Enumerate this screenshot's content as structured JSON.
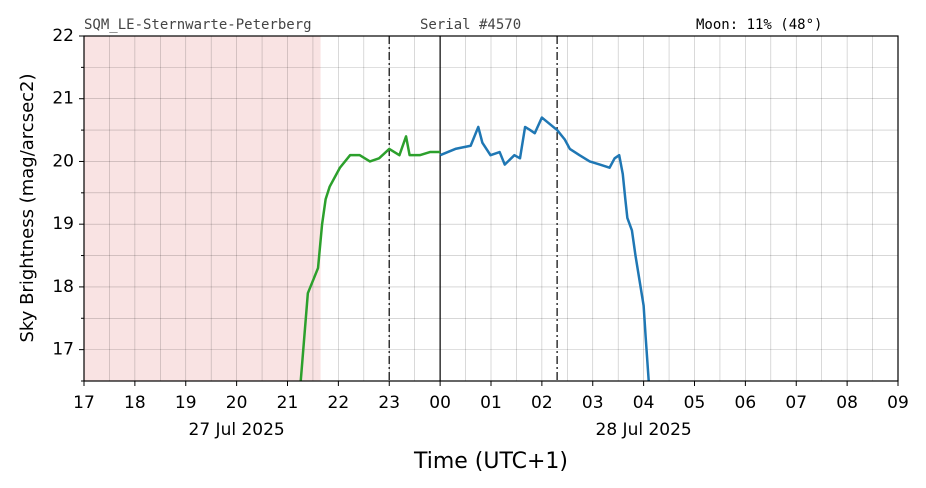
{
  "chart_data": {
    "type": "line",
    "header": {
      "station": "SQM_LE-Sternwarte-Peterberg",
      "serial": "Serial #4570",
      "moon": "Moon: 11% (48°)"
    },
    "y_label": "Sky Brightness (mag/arcsec2)",
    "x_label": "Time (UTC+1)",
    "date_labels": [
      {
        "text": "27 Jul 2025",
        "x": 20
      },
      {
        "text": "28 Jul 2025",
        "x": 28
      }
    ],
    "xlim": [
      17,
      33
    ],
    "ylim": [
      16.5,
      22
    ],
    "xticks": [
      17,
      18,
      19,
      20,
      21,
      22,
      23,
      {
        "value": 24,
        "label": "00"
      },
      {
        "value": 25,
        "label": "01"
      },
      {
        "value": 26,
        "label": "02"
      },
      {
        "value": 27,
        "label": "03"
      },
      {
        "value": 28,
        "label": "04"
      },
      {
        "value": 29,
        "label": "05"
      },
      {
        "value": 30,
        "label": "06"
      },
      {
        "value": 31,
        "label": "07"
      },
      {
        "value": 32,
        "label": "08"
      },
      {
        "value": 33,
        "label": "09"
      }
    ],
    "yticks": [
      17,
      18,
      19,
      20,
      21,
      22
    ],
    "x_minor_ticks": [
      17.5,
      18.5,
      19.5,
      20.5,
      21.5,
      22.5,
      23.5,
      24.5,
      25.5,
      26.5,
      27.5,
      28.5,
      29.5,
      30.5,
      31.5,
      32.5
    ],
    "y_minor_ticks": [
      16.5,
      17.5,
      18.5,
      19.5,
      20.5,
      21.5
    ],
    "grid": true,
    "shaded_span": [
      17,
      21.65
    ],
    "shaded_color": "#f9e3e3",
    "dashdot_lines": [
      23,
      26.3
    ],
    "solid_line": 24,
    "series": [
      {
        "color": "#2ca02c",
        "x": [
          21.26,
          21.4,
          21.45,
          21.6,
          21.68,
          21.75,
          21.83,
          22.03,
          22.23,
          22.42,
          22.62,
          22.8,
          23.0,
          23.2,
          23.33,
          23.4,
          23.6,
          23.8,
          24.0
        ],
        "values": [
          16.5,
          17.9,
          18.0,
          18.3,
          19.0,
          19.4,
          19.6,
          19.9,
          20.1,
          20.1,
          20.0,
          20.05,
          20.2,
          20.1,
          20.4,
          20.1,
          20.1,
          20.15,
          20.15
        ]
      },
      {
        "color": "#1f77b4",
        "x": [
          24.0,
          24.3,
          24.6,
          24.75,
          24.83,
          24.99,
          25.17,
          25.27,
          25.46,
          25.57,
          25.67,
          25.77,
          25.86,
          26.0,
          26.15,
          26.3,
          26.45,
          26.55,
          26.74,
          26.94,
          27.14,
          27.33,
          27.43,
          27.52,
          27.59,
          27.64,
          27.68,
          27.77,
          27.84,
          27.92,
          28.0,
          28.04,
          28.1
        ],
        "values": [
          20.1,
          20.2,
          20.25,
          20.55,
          20.3,
          20.1,
          20.15,
          19.95,
          20.1,
          20.05,
          20.55,
          20.5,
          20.45,
          20.7,
          20.6,
          20.5,
          20.35,
          20.2,
          20.1,
          20.0,
          19.95,
          19.9,
          20.05,
          20.1,
          19.8,
          19.4,
          19.1,
          18.9,
          18.5,
          18.1,
          17.7,
          17.2,
          16.5
        ]
      }
    ]
  }
}
